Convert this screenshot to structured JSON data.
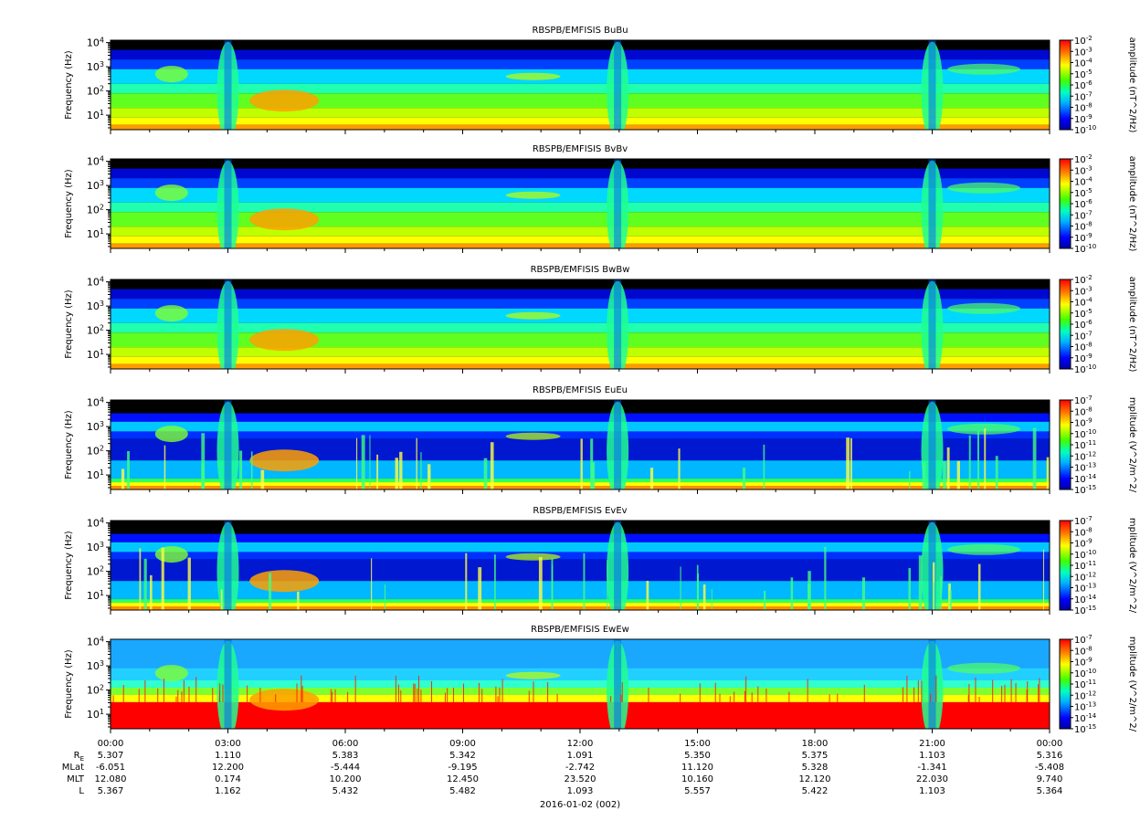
{
  "chart_data": [
    {
      "type": "heatmap",
      "title": "RBSPB/EMFISIS  BuBu",
      "ylabel": "Frequency (Hz)",
      "zlabel": "amplitude (nT^2/Hz)",
      "yscale": "log",
      "y_ticks": [
        "10^1",
        "10^2",
        "10^3",
        "10^4"
      ],
      "colorbar_ticks": [
        "10^-2",
        "10^-3",
        "10^-4",
        "10^-5",
        "10^-6",
        "10^-7",
        "10^-8",
        "10^-9",
        "10^-10"
      ],
      "colorbar_range": [
        -10,
        -2
      ]
    },
    {
      "type": "heatmap",
      "title": "RBSPB/EMFISIS  BvBv",
      "ylabel": "Frequency (Hz)",
      "zlabel": "amplitude (nT^2/Hz)",
      "yscale": "log",
      "y_ticks": [
        "10^1",
        "10^2",
        "10^3",
        "10^4"
      ],
      "colorbar_ticks": [
        "10^-2",
        "10^-3",
        "10^-4",
        "10^-5",
        "10^-6",
        "10^-7",
        "10^-8",
        "10^-9",
        "10^-10"
      ],
      "colorbar_range": [
        -10,
        -2
      ]
    },
    {
      "type": "heatmap",
      "title": "RBSPB/EMFISIS  BwBw",
      "ylabel": "Frequency (Hz)",
      "zlabel": "amplitude (nT^2/Hz)",
      "yscale": "log",
      "y_ticks": [
        "10^1",
        "10^2",
        "10^3",
        "10^4"
      ],
      "colorbar_ticks": [
        "10^-2",
        "10^-3",
        "10^-4",
        "10^-5",
        "10^-6",
        "10^-7",
        "10^-8",
        "10^-9",
        "10^-10"
      ],
      "colorbar_range": [
        -10,
        -2
      ]
    },
    {
      "type": "heatmap",
      "title": "RBSPB/EMFISIS  EuEu",
      "ylabel": "Frequency (Hz)",
      "zlabel": "mplitude (V^2/m^2/",
      "yscale": "log",
      "y_ticks": [
        "10^1",
        "10^2",
        "10^3",
        "10^4"
      ],
      "colorbar_ticks": [
        "10^-7",
        "10^-8",
        "10^-9",
        "10^-10",
        "10^-11",
        "10^-12",
        "10^-13",
        "10^-14",
        "10^-15"
      ],
      "colorbar_range": [
        -15,
        -7
      ]
    },
    {
      "type": "heatmap",
      "title": "RBSPB/EMFISIS  EvEv",
      "ylabel": "Frequency (Hz)",
      "zlabel": "mplitude (V^2/m^2/",
      "yscale": "log",
      "y_ticks": [
        "10^1",
        "10^2",
        "10^3",
        "10^4"
      ],
      "colorbar_ticks": [
        "10^-7",
        "10^-8",
        "10^-9",
        "10^-10",
        "10^-11",
        "10^-12",
        "10^-13",
        "10^-14",
        "10^-15"
      ],
      "colorbar_range": [
        -15,
        -7
      ]
    },
    {
      "type": "heatmap",
      "title": "RBSPB/EMFISIS  EwEw",
      "ylabel": "Frequency (Hz)",
      "zlabel": "mplitude (V^2/m^2/",
      "yscale": "log",
      "y_ticks": [
        "10^1",
        "10^2",
        "10^3",
        "10^4"
      ],
      "colorbar_ticks": [
        "10^-7",
        "10^-8",
        "10^-9",
        "10^-10",
        "10^-11",
        "10^-12",
        "10^-13",
        "10^-14",
        "10^-15"
      ],
      "colorbar_range": [
        -15,
        -7
      ]
    }
  ],
  "time_axis": {
    "ticks": [
      "00:00",
      "03:00",
      "06:00",
      "09:00",
      "12:00",
      "15:00",
      "18:00",
      "21:00",
      "00:00"
    ],
    "date_label": "2016-01-02 (002)"
  },
  "ephemeris": [
    {
      "label": "R",
      "subscript": "E",
      "values": [
        "5.307",
        "1.110",
        "5.383",
        "5.342",
        "1.091",
        "5.350",
        "5.375",
        "1.103",
        "5.316"
      ]
    },
    {
      "label": "MLat",
      "subscript": "",
      "values": [
        "-6.051",
        "12.200",
        "-5.444",
        "-9.195",
        "-2.742",
        "11.120",
        "5.328",
        "-1.341",
        "-5.408"
      ]
    },
    {
      "label": "MLT",
      "subscript": "",
      "values": [
        "12.080",
        "0.174",
        "10.200",
        "12.450",
        "23.520",
        "10.160",
        "12.120",
        "22.030",
        "9.740"
      ]
    },
    {
      "label": "L",
      "subscript": "",
      "values": [
        "5.367",
        "1.162",
        "5.432",
        "5.482",
        "1.093",
        "5.557",
        "5.422",
        "1.103",
        "5.364"
      ]
    }
  ]
}
